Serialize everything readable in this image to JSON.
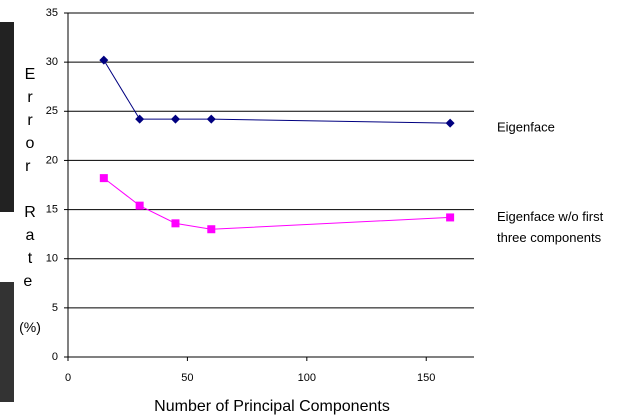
{
  "chart_data": {
    "type": "line",
    "x_label": "Number of Principal Components",
    "y_label": "Error Rate (%)",
    "xlim": [
      0,
      170
    ],
    "xticks": [
      0,
      50,
      100,
      150
    ],
    "ylim": [
      0,
      35
    ],
    "yticks": [
      0,
      5,
      10,
      15,
      20,
      25,
      30,
      35
    ],
    "grid": true,
    "legend": "right",
    "series": [
      {
        "name": "Eigenface",
        "color": "#000080",
        "marker": "diamond",
        "x": [
          15,
          30,
          45,
          60,
          160
        ],
        "values": [
          30.2,
          24.2,
          24.2,
          24.2,
          23.8
        ]
      },
      {
        "name": "Eigenface w/o first three components",
        "color": "#ff00ff",
        "marker": "square",
        "x": [
          15,
          30,
          45,
          60,
          160
        ],
        "values": [
          18.2,
          15.4,
          13.6,
          13.0,
          14.2
        ]
      }
    ]
  }
}
